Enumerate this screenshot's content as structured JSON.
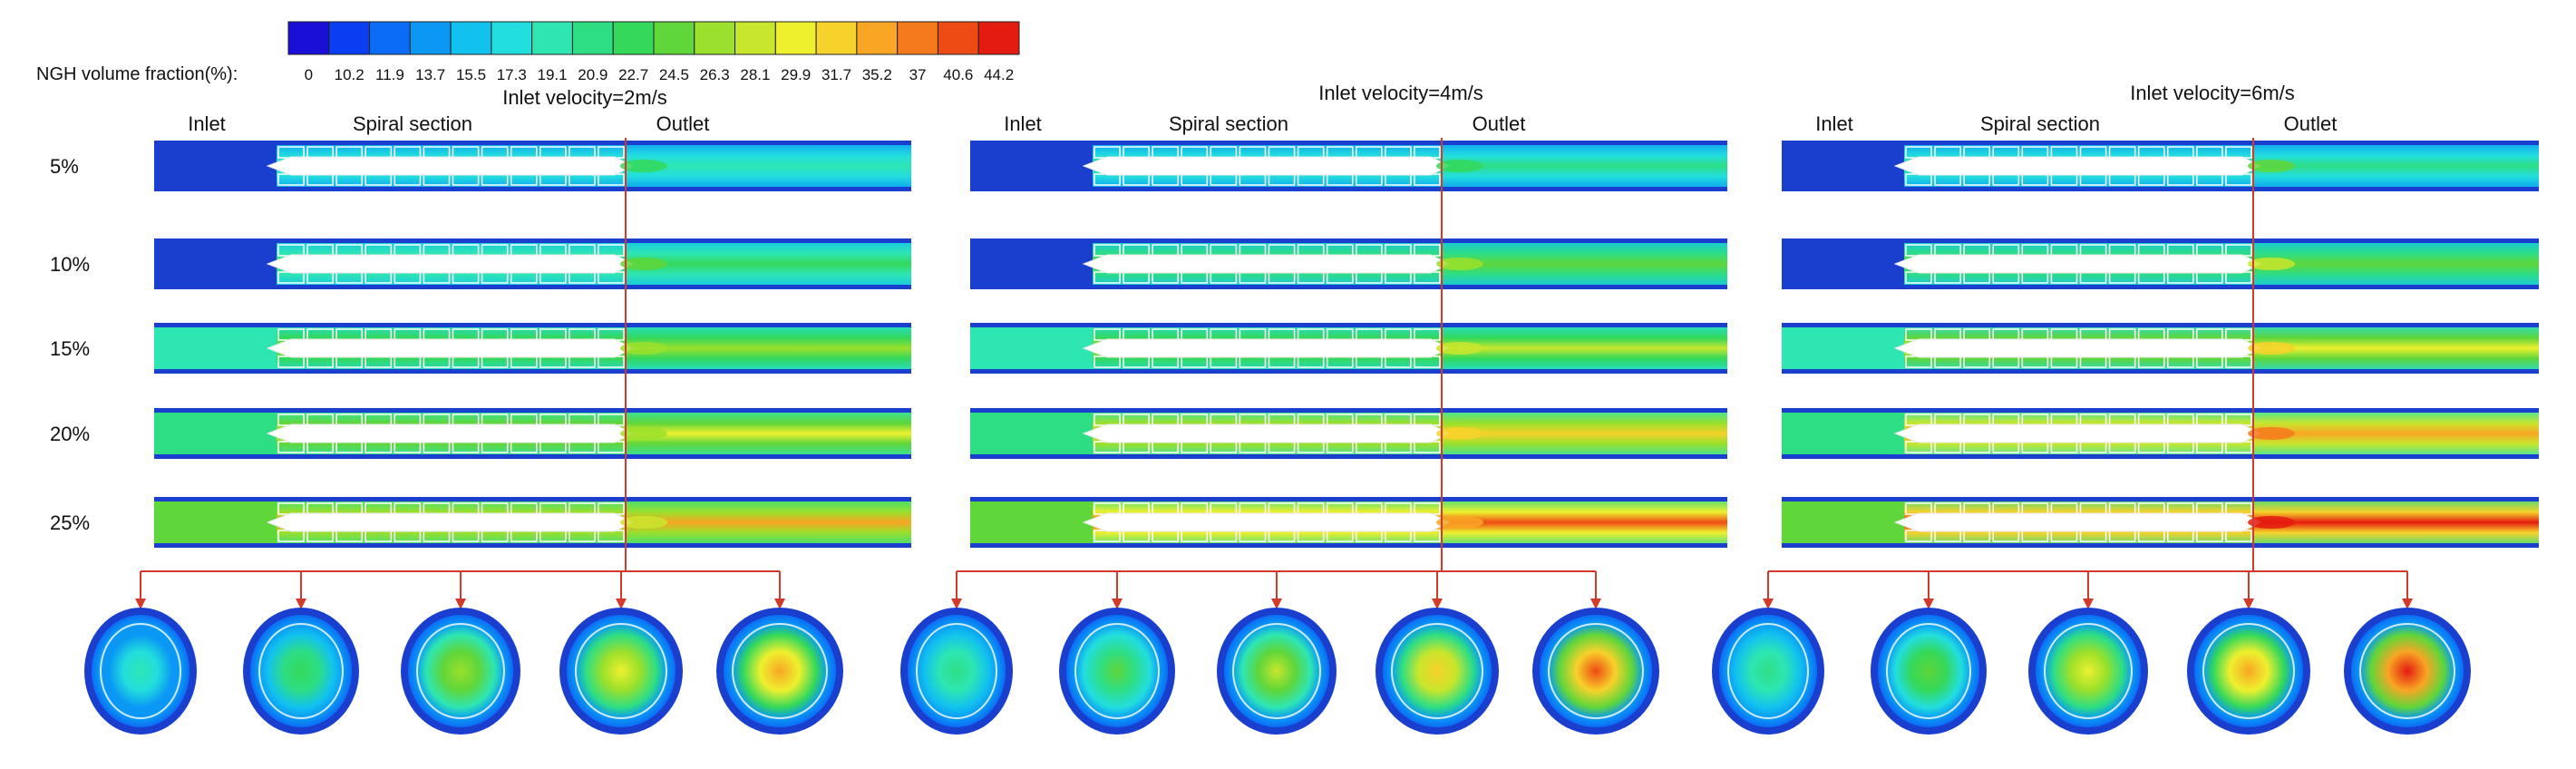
{
  "colorbar": {
    "label": "NGH volume fraction(%):",
    "ticks": [
      "0",
      "10.2",
      "11.9",
      "13.7",
      "15.5",
      "17.3",
      "19.1",
      "20.9",
      "22.7",
      "24.5",
      "26.3",
      "28.1",
      "29.9",
      "31.7",
      "35.2",
      "37",
      "40.6",
      "44.2"
    ],
    "colors": [
      "#1a0fd6",
      "#0a3ef2",
      "#0b6df6",
      "#0a98f4",
      "#12c2ee",
      "#22dede",
      "#2ee6b2",
      "#2ede84",
      "#34d85a",
      "#5fd63a",
      "#9ae02c",
      "#c8e62c",
      "#eef02e",
      "#f7d22a",
      "#f8a624",
      "#f47a1c",
      "#ee4a14",
      "#e41b10"
    ]
  },
  "section_labels": {
    "inlet": "Inlet",
    "spiral": "Spiral section",
    "outlet": "Outlet"
  },
  "row_labels": [
    "5%",
    "10%",
    "15%",
    "20%",
    "25%"
  ],
  "panels": [
    {
      "title": "Inlet velocity=2m/s",
      "intensity": 0.45
    },
    {
      "title": "Inlet velocity=4m/s",
      "intensity": 0.75
    },
    {
      "title": "Inlet velocity=6m/s",
      "intensity": 1.0
    }
  ],
  "colors": {
    "pipe_base": "#1a3fcf",
    "divider_line": "#d33a2c",
    "white": "#ffffff"
  }
}
